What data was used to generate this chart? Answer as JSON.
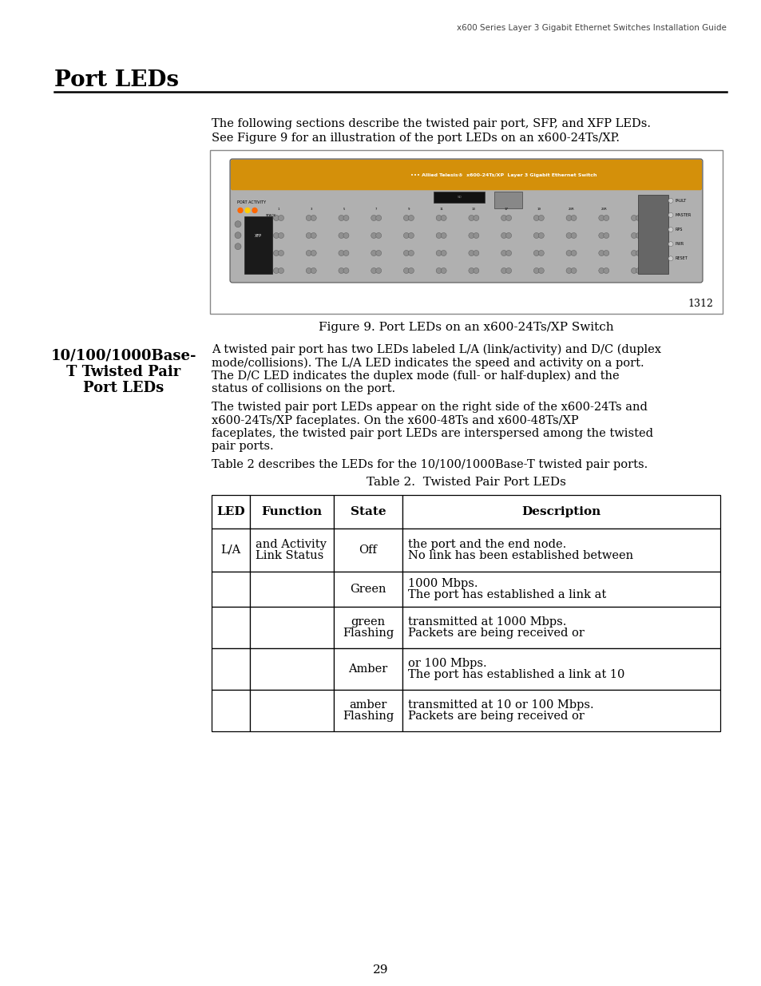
{
  "page_bg": "#ffffff",
  "header_text": "x600 Series Layer 3 Gigabit Ethernet Switches Installation Guide",
  "footer_text": "29",
  "section_title": "Port LEDs",
  "intro_text_line1": "The following sections describe the twisted pair port, SFP, and XFP LEDs.",
  "intro_text_line2": "See Figure 9 for an illustration of the port LEDs on an x600-24Ts/XP.",
  "figure_caption": "Figure 9. Port LEDs on an x600-24Ts/XP Switch",
  "figure_number": "1312",
  "subsection_title_line1": "10/100/1000Base-",
  "subsection_title_line2": "T Twisted Pair",
  "subsection_title_line3": "Port LEDs",
  "para1_line1": "A twisted pair port has two LEDs labeled L/A (link/activity) and D/C (duplex",
  "para1_line2": "mode/collisions). The L/A LED indicates the speed and activity on a port.",
  "para1_line3": "The D/C LED indicates the duplex mode (full- or half-duplex) and the",
  "para1_line4": "status of collisions on the port.",
  "para2_line1": "The twisted pair port LEDs appear on the right side of the x600-24Ts and",
  "para2_line2": "x600-24Ts/XP faceplates. On the x600-48Ts and x600-48Ts/XP",
  "para2_line3": "faceplates, the twisted pair port LEDs are interspersed among the twisted",
  "para2_line4": "pair ports.",
  "para3": "Table 2 describes the LEDs for the 10/100/1000Base-T twisted pair ports.",
  "table_title": "Table 2.  Twisted Pair Port LEDs",
  "table_headers": [
    "LED",
    "Function",
    "State",
    "Description"
  ],
  "table_rows": [
    [
      "L/A",
      "Link Status\nand Activity",
      "Off",
      "No link has been established between\nthe port and the end node."
    ],
    [
      "",
      "",
      "Green",
      "The port has established a link at\n1000 Mbps."
    ],
    [
      "",
      "",
      "Flashing\ngreen",
      "Packets are being received or\ntransmitted at 1000 Mbps."
    ],
    [
      "",
      "",
      "Amber",
      "The port has established a link at 10\nor 100 Mbps."
    ],
    [
      "",
      "",
      "Flashing\namber",
      "Packets are being received or\ntransmitted at 10 or 100 Mbps."
    ]
  ],
  "text_color": "#000000"
}
